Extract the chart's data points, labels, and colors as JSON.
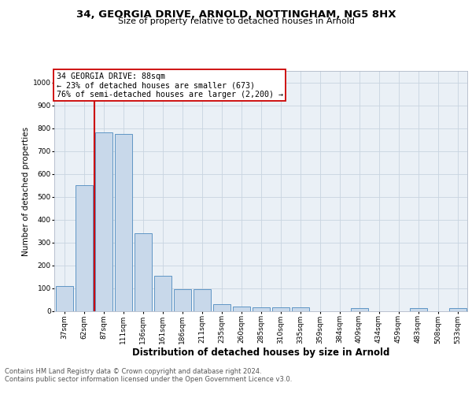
{
  "title1": "34, GEORGIA DRIVE, ARNOLD, NOTTINGHAM, NG5 8HX",
  "title2": "Size of property relative to detached houses in Arnold",
  "xlabel": "Distribution of detached houses by size in Arnold",
  "ylabel": "Number of detached properties",
  "categories": [
    "37sqm",
    "62sqm",
    "87sqm",
    "111sqm",
    "136sqm",
    "161sqm",
    "186sqm",
    "211sqm",
    "235sqm",
    "260sqm",
    "285sqm",
    "310sqm",
    "335sqm",
    "359sqm",
    "384sqm",
    "409sqm",
    "434sqm",
    "459sqm",
    "483sqm",
    "508sqm",
    "533sqm"
  ],
  "values": [
    110,
    550,
    780,
    775,
    340,
    155,
    95,
    95,
    30,
    22,
    18,
    18,
    17,
    0,
    0,
    15,
    0,
    0,
    15,
    0,
    15
  ],
  "bar_color": "#c8d8ea",
  "bar_edge_color": "#4d8abf",
  "annotation_text": "34 GEORGIA DRIVE: 88sqm\n← 23% of detached houses are smaller (673)\n76% of semi-detached houses are larger (2,200) →",
  "annotation_box_color": "#ffffff",
  "annotation_box_edge": "#cc0000",
  "red_line_color": "#cc0000",
  "grid_color": "#c8d4e0",
  "bg_color": "#eaf0f6",
  "footer_text1": "Contains HM Land Registry data © Crown copyright and database right 2024.",
  "footer_text2": "Contains public sector information licensed under the Open Government Licence v3.0.",
  "ylim": [
    0,
    1050
  ],
  "yticks": [
    0,
    100,
    200,
    300,
    400,
    500,
    600,
    700,
    800,
    900,
    1000
  ],
  "title1_fontsize": 9.5,
  "title2_fontsize": 8.0,
  "xlabel_fontsize": 8.5,
  "ylabel_fontsize": 7.5,
  "tick_fontsize": 6.5,
  "annotation_fontsize": 7.2,
  "footer_fontsize": 6.0,
  "red_line_x": 1.55
}
